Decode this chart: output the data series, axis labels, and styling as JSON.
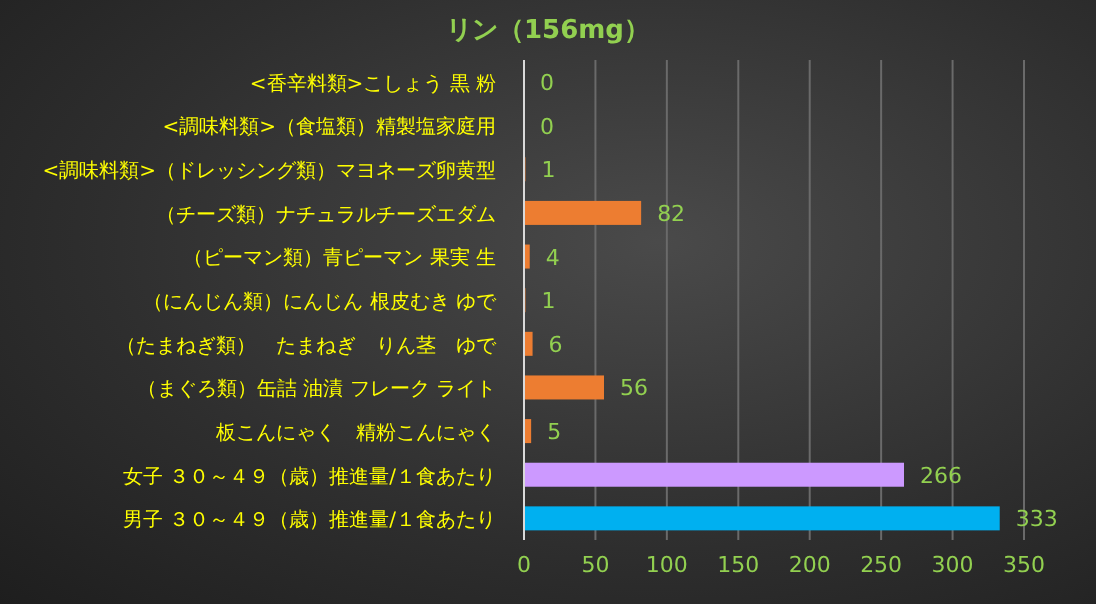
{
  "chart_data": {
    "type": "bar",
    "orientation": "horizontal",
    "title": "リン（156mg）",
    "categories": [
      "<香辛料類>こしょう 黒 粉",
      "<調味料類>（食塩類）精製塩家庭用",
      "<調味料類>（ドレッシング類）マヨネーズ卵黄型",
      "（チーズ類）ナチュラルチーズエダム",
      "（ピーマン類）青ピーマン 果実 生",
      "（にんじん類）にんじん 根皮むき ゆで",
      "（たまねぎ類）　たまねぎ　りん茎　ゆで",
      "（まぐろ類）缶詰 油漬 フレーク ライト",
      "板こんにゃく　精粉こんにゃく",
      "女子 ３０～４９（歳）推進量/１食あたり",
      "男子 ３０～４９（歳）推進量/１食あたり"
    ],
    "values": [
      0,
      0,
      1,
      82,
      4,
      1,
      6,
      56,
      5,
      266,
      333
    ],
    "colors": [
      "#ed7d31",
      "#ed7d31",
      "#ed7d31",
      "#ed7d31",
      "#ed7d31",
      "#ed7d31",
      "#ed7d31",
      "#ed7d31",
      "#ed7d31",
      "#cc99ff",
      "#00b0f0"
    ],
    "xlim": [
      0,
      350
    ],
    "xticks": [
      0,
      50,
      100,
      150,
      200,
      250,
      300,
      350
    ],
    "grid": "x",
    "data_labels": true
  }
}
